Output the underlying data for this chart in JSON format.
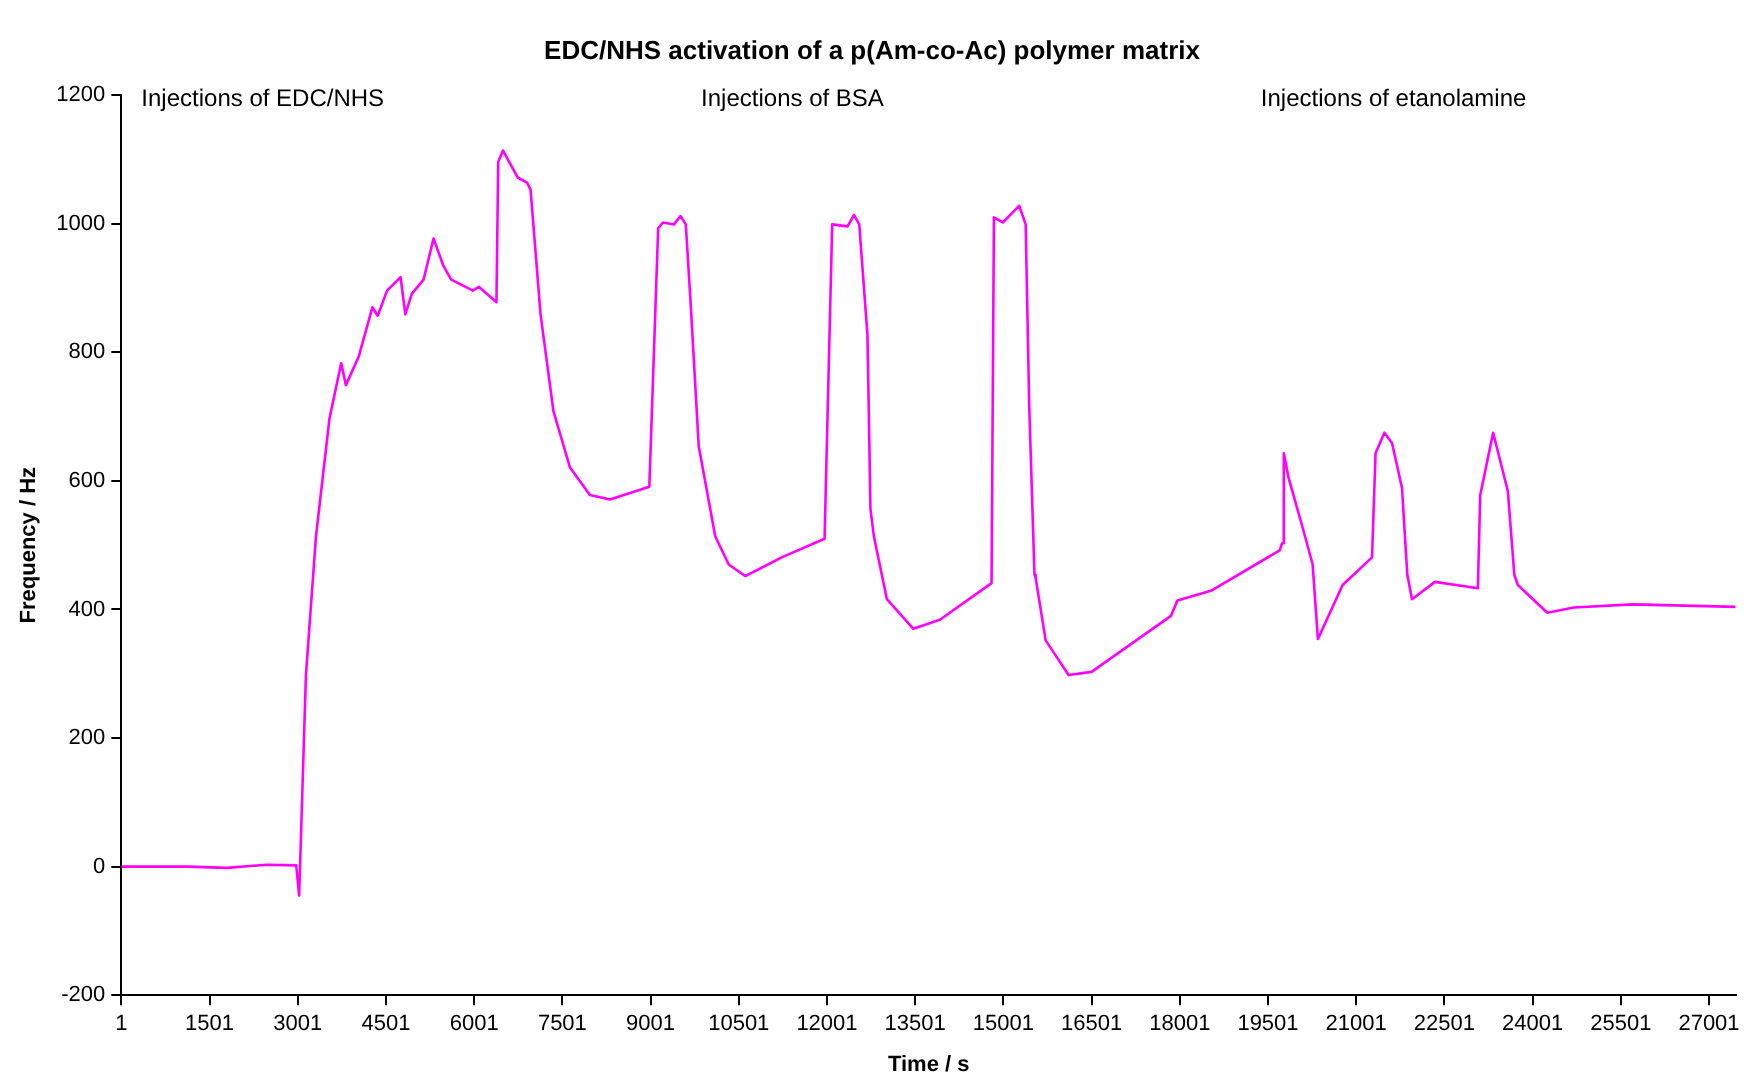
{
  "chart_data": {
    "type": "line",
    "title": "EDC/NHS activation of a p(Am-co-Ac) polymer matrix",
    "xlabel": "Time / s",
    "ylabel": "Frequency / Hz",
    "annotations": [
      "Injections of EDC/NHS",
      "Injections of BSA",
      "Injections of etanolamine"
    ],
    "x": [
      1,
      1120,
      1800,
      2470,
      2975,
      3025,
      3140,
      3310,
      3540,
      3740,
      3820,
      4040,
      4270,
      4360,
      4520,
      4750,
      4830,
      4940,
      5140,
      5310,
      5480,
      5610,
      5980,
      6080,
      6380,
      6410,
      6490,
      6740,
      6900,
      6960,
      7130,
      7350,
      7630,
      7970,
      8310,
      8980,
      9130,
      9210,
      9400,
      9510,
      9600,
      9680,
      9820,
      10100,
      10330,
      10610,
      11230,
      11960,
      12090,
      12350,
      12460,
      12550,
      12690,
      12740,
      12800,
      13020,
      13470,
      13920,
      14800,
      14840,
      14990,
      15270,
      15380,
      15440,
      15530,
      15550,
      15720,
      16110,
      16500,
      17850,
      17960,
      18530,
      19700,
      19740,
      19770,
      19850,
      20100,
      20260,
      20350,
      20770,
      21270,
      21330,
      21480,
      21610,
      21780,
      21870,
      21950,
      22340,
      23070,
      23110,
      23330,
      23580,
      23690,
      23750,
      24250,
      24700,
      25710,
      27450
    ],
    "series": [
      {
        "color": "#ff00ff",
        "values": [
          0,
          0,
          -2,
          3,
          2,
          -45,
          298,
          513,
          697,
          783,
          749,
          794,
          870,
          857,
          896,
          917,
          859,
          891,
          913,
          977,
          934,
          913,
          896,
          902,
          878,
          1096,
          1114,
          1072,
          1064,
          1053,
          859,
          708,
          621,
          578,
          571,
          591,
          993,
          1002,
          999,
          1012,
          999,
          880,
          654,
          514,
          470,
          452,
          481,
          510,
          999,
          996,
          1014,
          999,
          826,
          557,
          513,
          416,
          370,
          384,
          441,
          1010,
          1002,
          1028,
          999,
          718,
          454,
          449,
          352,
          298,
          303,
          390,
          414,
          429,
          492,
          503,
          643,
          605,
          524,
          470,
          354,
          438,
          481,
          643,
          675,
          659,
          589,
          454,
          416,
          443,
          433,
          578,
          675,
          584,
          454,
          438,
          395,
          403,
          408,
          404
        ]
      }
    ],
    "xlim": [
      1,
      27460
    ],
    "xticks": [
      1,
      1501,
      3001,
      4501,
      6001,
      7501,
      9001,
      10501,
      12001,
      13501,
      15001,
      16501,
      18001,
      19501,
      21001,
      22501,
      24001,
      25501,
      27001
    ],
    "ylim": [
      -200,
      1200
    ],
    "yticks": [
      -200,
      0,
      200,
      400,
      600,
      800,
      1000,
      1200
    ],
    "grid": false,
    "legend": false,
    "marker": "none",
    "line_style": "solid"
  }
}
